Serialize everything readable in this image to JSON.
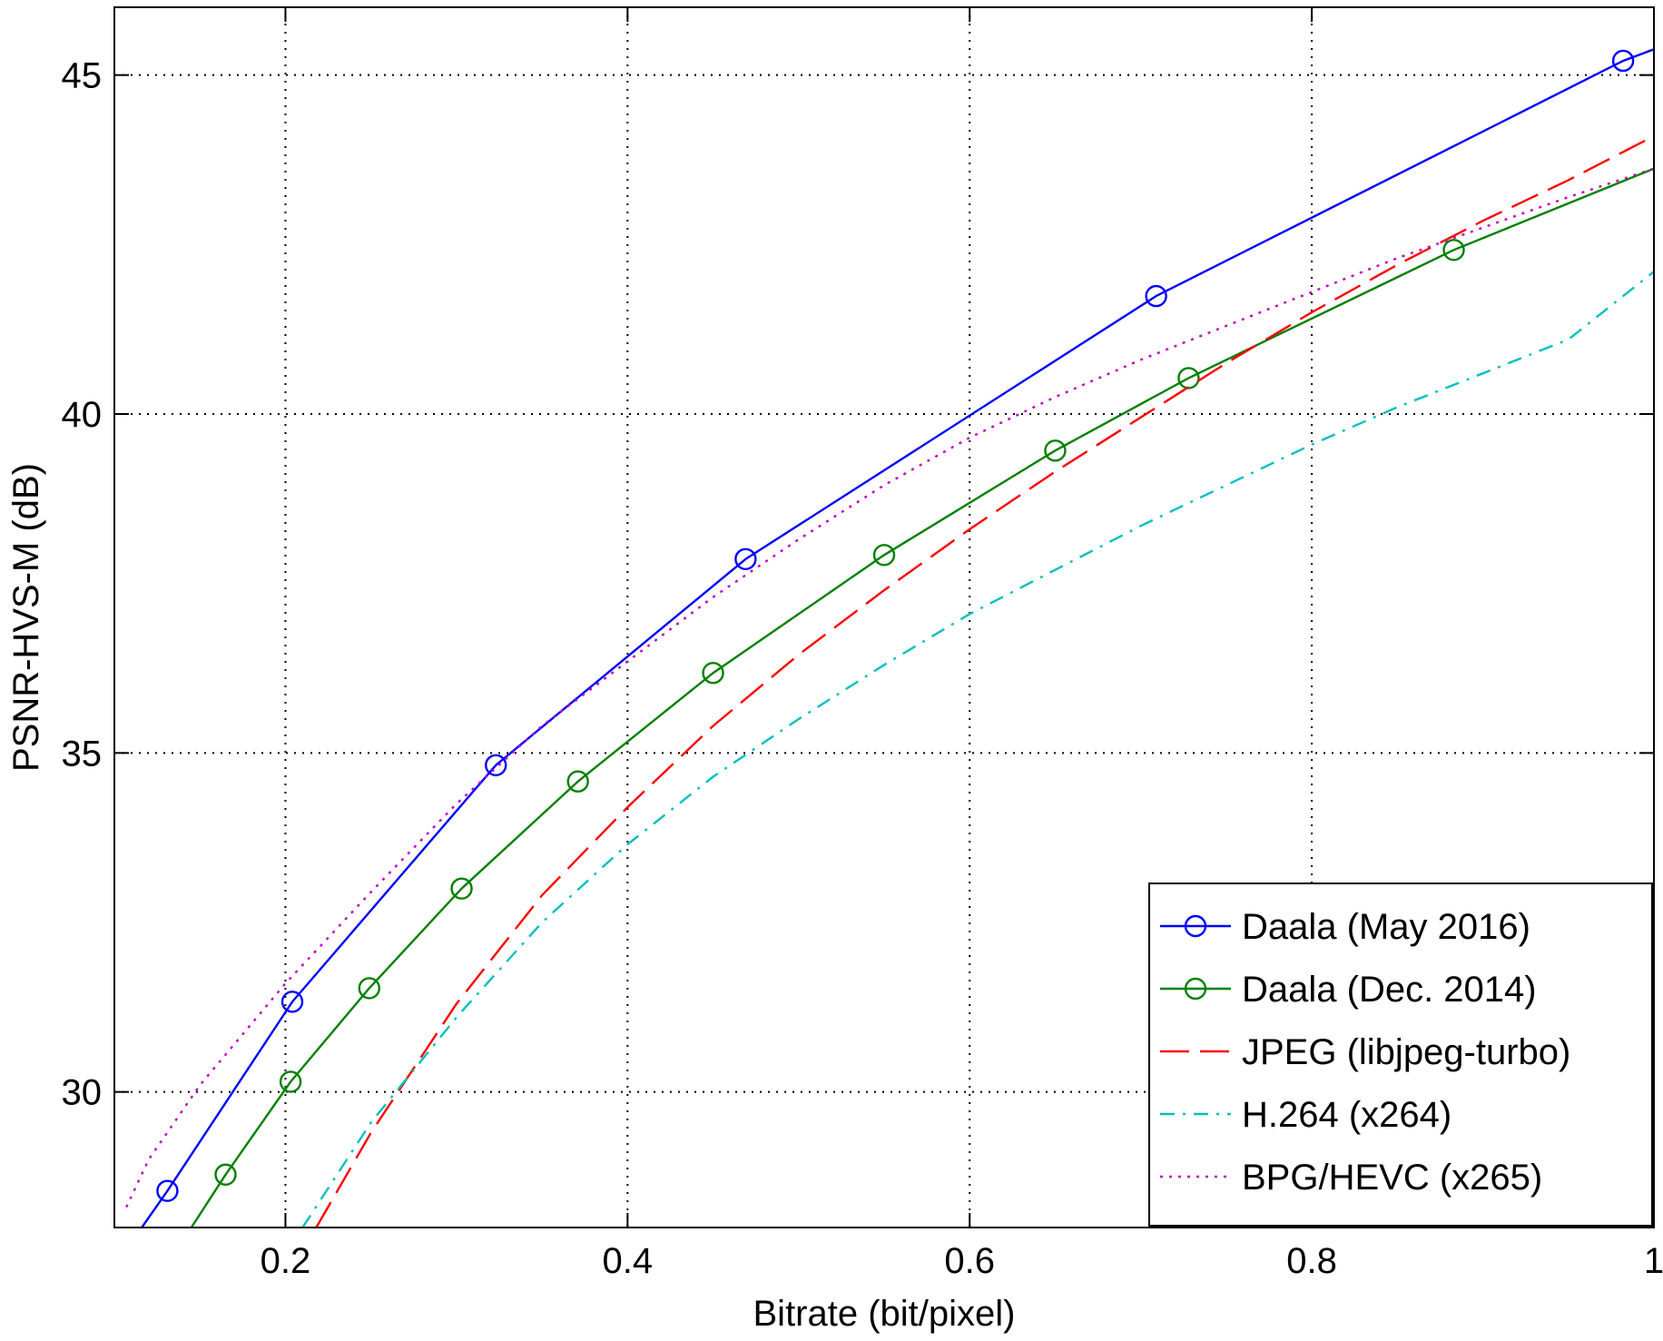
{
  "chart_data": {
    "type": "line",
    "title": "",
    "xlabel": "Bitrate (bit/pixel)",
    "ylabel": "PSNR-HVS-M (dB)",
    "xlim": [
      0.1,
      1.0
    ],
    "ylim": [
      28.0,
      46.0
    ],
    "x_ticks": [
      0.2,
      0.4,
      0.6,
      0.8,
      1.0
    ],
    "x_tick_labels": [
      "0.2",
      "0.4",
      "0.6",
      "0.8",
      "1"
    ],
    "y_ticks": [
      30,
      35,
      40,
      45
    ],
    "y_tick_labels": [
      "30",
      "35",
      "40",
      "45"
    ],
    "grid": true,
    "legend_position": "bottom-right",
    "series": [
      {
        "name": "Daala (May 2016)",
        "color": "#0000ff",
        "line_style": "solid",
        "marker": "circle",
        "points": [
          [
            0.116,
            28.0
          ],
          [
            0.131,
            28.54
          ],
          [
            0.204,
            31.33
          ],
          [
            0.323,
            34.82
          ],
          [
            0.469,
            37.86
          ],
          [
            0.709,
            41.74
          ],
          [
            0.982,
            45.21
          ],
          [
            1.0,
            45.38
          ]
        ],
        "marker_points": [
          [
            0.131,
            28.54
          ],
          [
            0.204,
            31.33
          ],
          [
            0.323,
            34.82
          ],
          [
            0.469,
            37.86
          ],
          [
            0.709,
            41.74
          ],
          [
            0.982,
            45.21
          ]
        ]
      },
      {
        "name": "Daala (Dec. 2014)",
        "color": "#008000",
        "line_style": "solid",
        "marker": "circle",
        "points": [
          [
            0.145,
            28.0
          ],
          [
            0.165,
            28.78
          ],
          [
            0.203,
            30.15
          ],
          [
            0.249,
            31.53
          ],
          [
            0.303,
            33.0
          ],
          [
            0.371,
            34.58
          ],
          [
            0.45,
            36.18
          ],
          [
            0.55,
            37.92
          ],
          [
            0.65,
            39.46
          ],
          [
            0.728,
            40.53
          ],
          [
            0.883,
            42.42
          ],
          [
            1.0,
            43.62
          ]
        ],
        "marker_points": [
          [
            0.165,
            28.78
          ],
          [
            0.203,
            30.15
          ],
          [
            0.249,
            31.53
          ],
          [
            0.303,
            33.0
          ],
          [
            0.371,
            34.58
          ],
          [
            0.45,
            36.18
          ],
          [
            0.55,
            37.92
          ],
          [
            0.65,
            39.46
          ],
          [
            0.728,
            40.53
          ],
          [
            0.883,
            42.42
          ]
        ]
      },
      {
        "name": "JPEG (libjpeg-turbo)",
        "color": "#ff0000",
        "line_style": "dashed",
        "marker": "none",
        "points": [
          [
            0.218,
            28.0
          ],
          [
            0.25,
            29.4
          ],
          [
            0.3,
            31.3
          ],
          [
            0.35,
            32.9
          ],
          [
            0.4,
            34.2
          ],
          [
            0.45,
            35.4
          ],
          [
            0.5,
            36.45
          ],
          [
            0.55,
            37.4
          ],
          [
            0.6,
            38.3
          ],
          [
            0.65,
            39.15
          ],
          [
            0.7,
            39.95
          ],
          [
            0.75,
            40.75
          ],
          [
            0.8,
            41.5
          ],
          [
            0.85,
            42.2
          ],
          [
            0.9,
            42.85
          ],
          [
            0.95,
            43.45
          ],
          [
            1.0,
            44.1
          ]
        ]
      },
      {
        "name": "H.264 (x264)",
        "color": "#00bfbf",
        "line_style": "dashdot",
        "marker": "none",
        "points": [
          [
            0.21,
            28.0
          ],
          [
            0.25,
            29.55
          ],
          [
            0.3,
            31.1
          ],
          [
            0.35,
            32.5
          ],
          [
            0.4,
            33.65
          ],
          [
            0.45,
            34.65
          ],
          [
            0.5,
            35.5
          ],
          [
            0.55,
            36.3
          ],
          [
            0.6,
            37.05
          ],
          [
            0.65,
            37.7
          ],
          [
            0.7,
            38.35
          ],
          [
            0.75,
            38.95
          ],
          [
            0.8,
            39.55
          ],
          [
            0.85,
            40.1
          ],
          [
            0.9,
            40.6
          ],
          [
            0.95,
            41.1
          ],
          [
            1.0,
            42.1
          ]
        ]
      },
      {
        "name": "BPG/HEVC (x265)",
        "color": "#bf00bf",
        "line_style": "dotted",
        "marker": "none",
        "points": [
          [
            0.107,
            28.3
          ],
          [
            0.12,
            29.0
          ],
          [
            0.15,
            30.1
          ],
          [
            0.2,
            31.6
          ],
          [
            0.25,
            32.95
          ],
          [
            0.3,
            34.25
          ],
          [
            0.35,
            35.4
          ],
          [
            0.4,
            36.35
          ],
          [
            0.45,
            37.3
          ],
          [
            0.5,
            38.15
          ],
          [
            0.55,
            38.95
          ],
          [
            0.6,
            39.65
          ],
          [
            0.65,
            40.25
          ],
          [
            0.7,
            40.8
          ],
          [
            0.75,
            41.3
          ],
          [
            0.8,
            41.8
          ],
          [
            0.85,
            42.3
          ],
          [
            0.9,
            42.75
          ],
          [
            0.95,
            43.2
          ],
          [
            1.0,
            43.62
          ]
        ]
      }
    ]
  }
}
